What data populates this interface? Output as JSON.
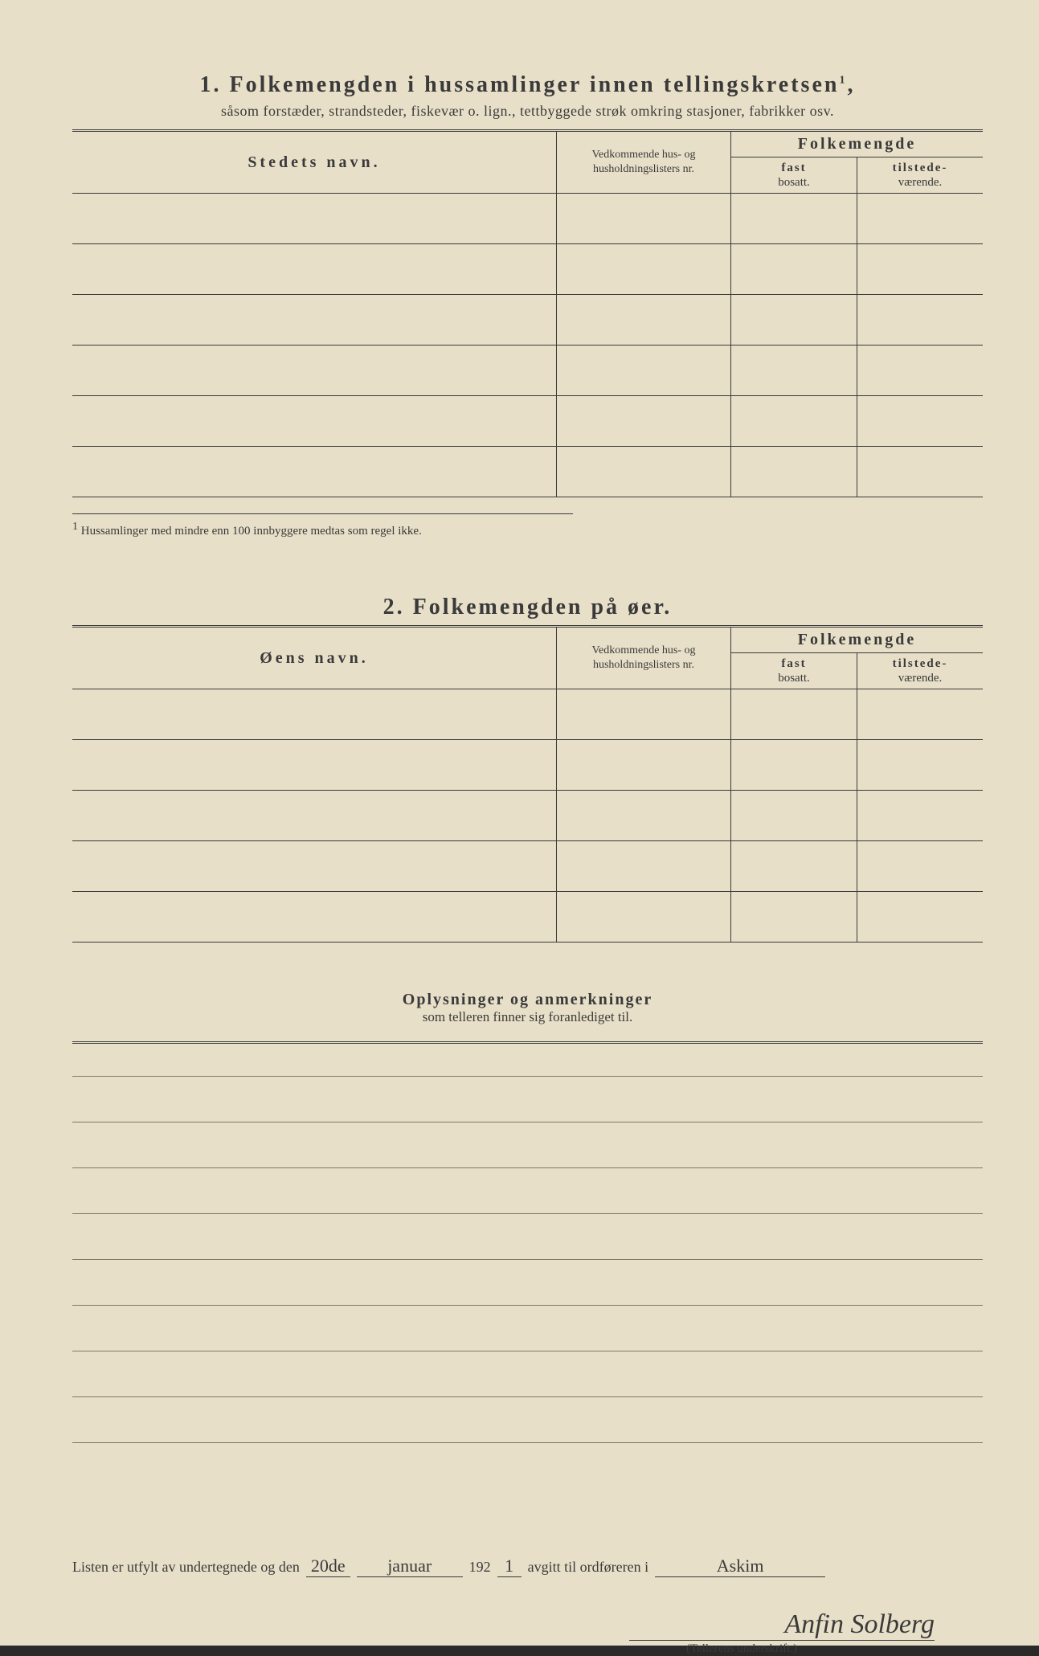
{
  "section1": {
    "number": "1.",
    "title": "Folkemengden i hussamlinger innen tellingskretsen",
    "sup": "1",
    "subtitle": "såsom forstæder, strandsteder, fiskevær o. lign., tettbyggede strøk omkring stasjoner, fabrikker osv.",
    "col_name": "Stedets navn.",
    "col_mid": "Vedkommende hus- og husholdningslisters nr.",
    "col_folkem": "Folkemengde",
    "col_fast_top": "fast",
    "col_fast_bot": "bosatt.",
    "col_til_top": "tilstede-",
    "col_til_bot": "værende.",
    "row_count": 6,
    "footnote_marker": "1",
    "footnote": "Hussamlinger med mindre enn 100 innbyggere medtas som regel ikke."
  },
  "section2": {
    "number": "2.",
    "title": "Folkemengden på øer.",
    "col_name": "Øens navn.",
    "col_mid": "Vedkommende hus- og husholdningslisters nr.",
    "col_folkem": "Folkemengde",
    "col_fast_top": "fast",
    "col_fast_bot": "bosatt.",
    "col_til_top": "tilstede-",
    "col_til_bot": "værende.",
    "row_count": 5
  },
  "notes": {
    "title": "Oplysninger og anmerkninger",
    "subtitle": "som telleren finner sig foranlediget til.",
    "line_count": 9
  },
  "signature": {
    "prefix": "Listen er utfylt av undertegnede og den",
    "date_day": "20de",
    "date_month": "januar",
    "year_prefix": "192",
    "year_suffix": "1",
    "mid": "avgitt til ordføreren i",
    "place": "Askim",
    "name": "Anfin Solberg",
    "label": "(Tellerens underskrift.)"
  },
  "colors": {
    "paper": "#e8dfc8",
    "ink": "#3a3a3a",
    "rule": "#7a7a6a"
  }
}
